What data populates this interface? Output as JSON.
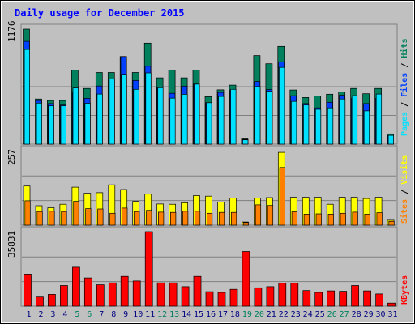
{
  "title": "Daily usage for December 2015",
  "colors": {
    "hits": "#00805c",
    "files": "#0040ff",
    "pages": "#00e0ff",
    "visits": "#ffff00",
    "sites": "#ff8000",
    "kbytes": "#ff0000",
    "plot_bg": "#c0c0c0",
    "frame": "#808080",
    "title": "#0000ff",
    "weekend": "#00805c",
    "weekday": "#000080"
  },
  "chart_data": [
    {
      "type": "bar",
      "panel": "hits-files-pages",
      "ymax_label": "1176",
      "ylim": [
        0,
        1176
      ],
      "right_labels": [
        "Pages",
        "/",
        "Files",
        "/",
        "Hits"
      ],
      "legend_placement": "right",
      "grid": true,
      "categories": [
        "1",
        "2",
        "3",
        "4",
        "5",
        "6",
        "7",
        "8",
        "9",
        "10",
        "11",
        "12",
        "13",
        "14",
        "15",
        "16",
        "17",
        "18",
        "19",
        "20",
        "21",
        "22",
        "23",
        "24",
        "25",
        "26",
        "27",
        "28",
        "29",
        "30",
        "31"
      ],
      "series": [
        {
          "name": "Hits",
          "values": [
            1176,
            462,
            446,
            446,
            756,
            570,
            733,
            733,
            896,
            733,
            1033,
            678,
            756,
            678,
            756,
            485,
            556,
            604,
            54,
            906,
            822,
            1000,
            554,
            477,
            492,
            511,
            534,
            570,
            516,
            570,
            105
          ]
        },
        {
          "name": "Files",
          "values": [
            1051,
            446,
            415,
            400,
            537,
            469,
            595,
            667,
            896,
            651,
            797,
            577,
            520,
            594,
            615,
            424,
            529,
            549,
            48,
            641,
            559,
            842,
            495,
            415,
            371,
            428,
            500,
            469,
            415,
            469,
            90
          ]
        },
        {
          "name": "Pages",
          "values": [
            968,
            420,
            392,
            392,
            575,
            418,
            513,
            667,
            715,
            561,
            729,
            577,
            470,
            510,
            614,
            424,
            488,
            561,
            44,
            589,
            542,
            785,
            437,
            400,
            356,
            371,
            462,
            496,
            340,
            513,
            90
          ]
        }
      ]
    },
    {
      "type": "bar",
      "panel": "visits-sites",
      "ymax_label": "257",
      "ylim": [
        0,
        257
      ],
      "right_labels": [
        "Sites",
        "/",
        "Visits"
      ],
      "legend_placement": "right",
      "grid": true,
      "categories": [
        "1",
        "2",
        "3",
        "4",
        "5",
        "6",
        "7",
        "8",
        "9",
        "10",
        "11",
        "12",
        "13",
        "14",
        "15",
        "16",
        "17",
        "18",
        "19",
        "20",
        "21",
        "22",
        "23",
        "24",
        "25",
        "26",
        "27",
        "28",
        "29",
        "30",
        "31"
      ],
      "series": [
        {
          "name": "Visits",
          "values": [
            135,
            67,
            60,
            72,
            131,
            110,
            112,
            139,
            123,
            82,
            107,
            73,
            72,
            77,
            102,
            100,
            80,
            94,
            11,
            94,
            95,
            251,
            96,
            96,
            96,
            72,
            96,
            96,
            92,
            96,
            17
          ]
        },
        {
          "name": "Sites",
          "values": [
            84,
            47,
            48,
            47,
            82,
            57,
            56,
            41,
            59,
            47,
            51,
            45,
            44,
            48,
            48,
            41,
            44,
            44,
            9,
            70,
            68,
            199,
            46,
            38,
            39,
            38,
            41,
            45,
            38,
            43,
            13
          ]
        }
      ]
    },
    {
      "type": "bar",
      "panel": "kbytes",
      "ymax_label": "35831",
      "ylim": [
        0,
        35831
      ],
      "right_labels": [
        "KBytes"
      ],
      "legend_placement": "right",
      "grid": true,
      "categories": [
        "1",
        "2",
        "3",
        "4",
        "5",
        "6",
        "7",
        "8",
        "9",
        "10",
        "11",
        "12",
        "13",
        "14",
        "15",
        "16",
        "17",
        "18",
        "19",
        "20",
        "21",
        "22",
        "23",
        "24",
        "25",
        "26",
        "27",
        "28",
        "29",
        "30",
        "31"
      ],
      "series": [
        {
          "name": "KBytes",
          "values": [
            15440,
            4411,
            5698,
            9924,
            18750,
            13602,
            10292,
            11212,
            14337,
            12130,
            35831,
            11212,
            11212,
            9373,
            14337,
            6984,
            6617,
            8087,
            26273,
            8823,
            9373,
            11026,
            11026,
            7536,
            6617,
            7352,
            7169,
            9924,
            7352,
            5881,
            1470
          ]
        }
      ]
    }
  ],
  "day_labels": [
    {
      "text": "1",
      "weekend": false
    },
    {
      "text": "2",
      "weekend": false
    },
    {
      "text": "3",
      "weekend": false
    },
    {
      "text": "4",
      "weekend": false
    },
    {
      "text": "5",
      "weekend": true
    },
    {
      "text": "6",
      "weekend": true
    },
    {
      "text": "7",
      "weekend": false
    },
    {
      "text": "8",
      "weekend": false
    },
    {
      "text": "9",
      "weekend": false
    },
    {
      "text": "10",
      "weekend": false
    },
    {
      "text": "11",
      "weekend": false
    },
    {
      "text": "12",
      "weekend": true
    },
    {
      "text": "13",
      "weekend": true
    },
    {
      "text": "14",
      "weekend": false
    },
    {
      "text": "15",
      "weekend": false
    },
    {
      "text": "16",
      "weekend": false
    },
    {
      "text": "17",
      "weekend": false
    },
    {
      "text": "18",
      "weekend": false
    },
    {
      "text": "19",
      "weekend": true
    },
    {
      "text": "20",
      "weekend": true
    },
    {
      "text": "21",
      "weekend": false
    },
    {
      "text": "22",
      "weekend": false
    },
    {
      "text": "23",
      "weekend": false
    },
    {
      "text": "24",
      "weekend": false
    },
    {
      "text": "25",
      "weekend": false
    },
    {
      "text": "26",
      "weekend": true
    },
    {
      "text": "27",
      "weekend": true
    },
    {
      "text": "28",
      "weekend": false
    },
    {
      "text": "29",
      "weekend": false
    },
    {
      "text": "30",
      "weekend": false
    },
    {
      "text": "31",
      "weekend": false
    }
  ]
}
